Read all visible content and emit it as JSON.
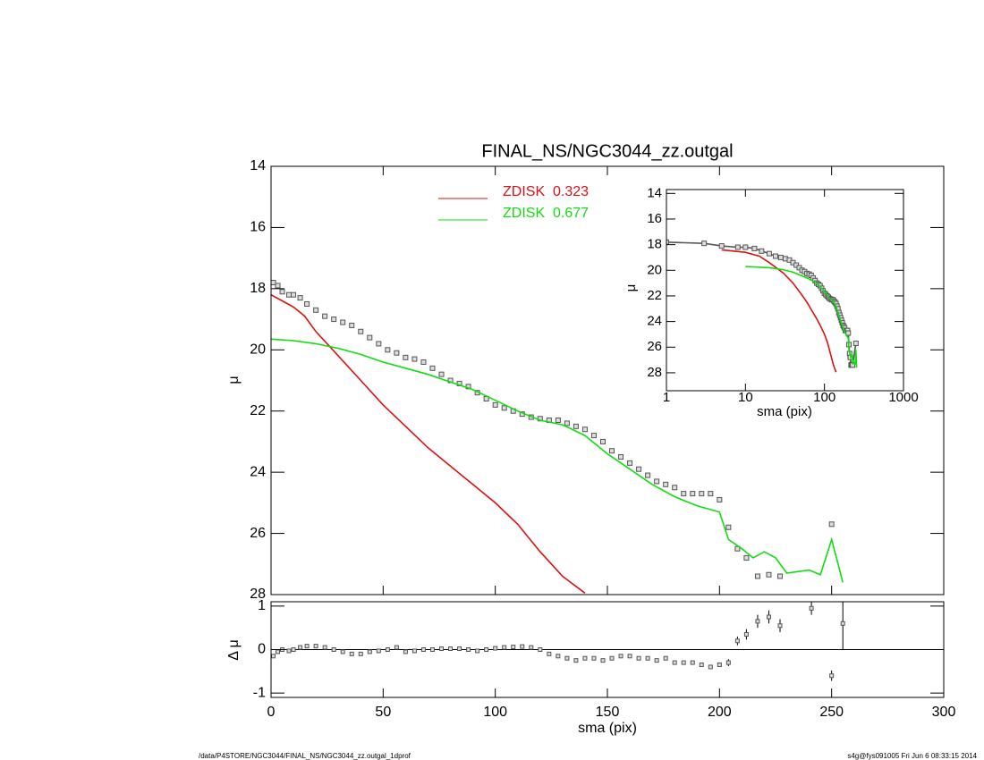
{
  "chart_data": [
    {
      "type": "scatter-line",
      "title": "FINAL_NS/NGC3044_zz.outgal",
      "ylabel": "μ",
      "xlabel": "sma (pix)",
      "xlim": [
        0,
        300
      ],
      "xticks": [
        0,
        50,
        100,
        150,
        200,
        250,
        300
      ],
      "ylim": [
        14,
        28
      ],
      "yticks": [
        14,
        16,
        18,
        20,
        22,
        24,
        26,
        28
      ],
      "y_inverted": true,
      "series": [
        {
          "kind": "points",
          "color": "#555555",
          "x": [
            1,
            3,
            5,
            8,
            10,
            13,
            16,
            20,
            24,
            28,
            32,
            36,
            40,
            44,
            48,
            52,
            56,
            60,
            64,
            68,
            72,
            76,
            80,
            84,
            88,
            92,
            96,
            100,
            104,
            108,
            112,
            116,
            120,
            124,
            128,
            132,
            136,
            140,
            144,
            148,
            152,
            156,
            160,
            164,
            168,
            172,
            176,
            180,
            184,
            188,
            192,
            196,
            200,
            204,
            208,
            212,
            217,
            222,
            227,
            250
          ],
          "values": [
            17.8,
            17.9,
            18.1,
            18.2,
            18.2,
            18.3,
            18.5,
            18.7,
            18.9,
            19.0,
            19.1,
            19.2,
            19.4,
            19.6,
            19.8,
            20.0,
            20.1,
            20.25,
            20.3,
            20.4,
            20.6,
            20.8,
            21.0,
            21.1,
            21.2,
            21.4,
            21.6,
            21.8,
            21.9,
            22.0,
            22.1,
            22.2,
            22.25,
            22.3,
            22.3,
            22.4,
            22.5,
            22.6,
            22.8,
            23.0,
            23.3,
            23.5,
            23.7,
            23.9,
            24.1,
            24.3,
            24.4,
            24.5,
            24.7,
            24.7,
            24.7,
            24.7,
            24.9,
            25.8,
            26.5,
            26.8,
            27.4,
            27.35,
            27.4,
            25.7
          ]
        },
        {
          "kind": "line",
          "name": "ZDISK  0.323",
          "color": "#dd1111",
          "x": [
            0,
            5,
            10,
            15,
            20,
            30,
            40,
            50,
            60,
            70,
            80,
            90,
            100,
            110,
            120,
            130,
            140
          ],
          "values": [
            18.2,
            18.4,
            18.6,
            18.9,
            19.4,
            20.2,
            21.0,
            21.8,
            22.5,
            23.2,
            23.8,
            24.4,
            25.0,
            25.7,
            26.6,
            27.4,
            27.95
          ]
        },
        {
          "kind": "line",
          "name": "ZDISK  0.677",
          "color": "#11dd11",
          "x": [
            0,
            10,
            20,
            30,
            40,
            50,
            60,
            70,
            80,
            90,
            100,
            110,
            120,
            130,
            140,
            150,
            160,
            170,
            180,
            190,
            200,
            204,
            210,
            215,
            220,
            225,
            230,
            240,
            245,
            250,
            255
          ],
          "values": [
            19.65,
            19.7,
            19.8,
            19.95,
            20.15,
            20.4,
            20.6,
            20.8,
            21.05,
            21.3,
            21.65,
            22.0,
            22.3,
            22.45,
            22.8,
            23.4,
            23.9,
            24.4,
            24.8,
            25.1,
            25.3,
            26.2,
            26.5,
            26.8,
            26.6,
            26.8,
            27.3,
            27.2,
            27.35,
            26.2,
            27.6
          ]
        }
      ]
    },
    {
      "type": "residual",
      "ylabel": "Δ μ",
      "ylim": [
        -1.1,
        1.1
      ],
      "yticks": [
        -1,
        0,
        1
      ],
      "series": [
        {
          "color": "#555555",
          "x": [
            1,
            3,
            5,
            8,
            10,
            13,
            16,
            20,
            24,
            28,
            32,
            36,
            40,
            44,
            48,
            52,
            56,
            60,
            64,
            68,
            72,
            76,
            80,
            84,
            88,
            92,
            96,
            100,
            104,
            108,
            112,
            116,
            120,
            124,
            128,
            132,
            136,
            140,
            144,
            148,
            152,
            156,
            160,
            164,
            168,
            172,
            176,
            180,
            184,
            188,
            192,
            196,
            200,
            204,
            208,
            212,
            217,
            222,
            227,
            241,
            250,
            255
          ],
          "values": [
            -0.15,
            -0.05,
            0,
            -0.03,
            0,
            0.05,
            0.08,
            0.08,
            0.05,
            0,
            -0.05,
            -0.1,
            -0.1,
            -0.05,
            -0.03,
            0,
            0.05,
            -0.05,
            -0.03,
            0,
            0,
            0.02,
            0.02,
            0.02,
            0,
            -0.03,
            0,
            0.03,
            0.05,
            0.06,
            0.07,
            0.05,
            0,
            -0.1,
            -0.15,
            -0.2,
            -0.25,
            -0.2,
            -0.2,
            -0.25,
            -0.2,
            -0.15,
            -0.15,
            -0.2,
            -0.2,
            -0.25,
            -0.2,
            -0.3,
            -0.3,
            -0.3,
            -0.35,
            -0.4,
            -0.35,
            -0.3,
            0.2,
            0.35,
            0.65,
            0.75,
            0.55,
            0.95,
            -0.6,
            0.6
          ],
          "errors": [
            0.02,
            0.02,
            0.02,
            0.02,
            0.02,
            0.02,
            0.02,
            0.02,
            0.02,
            0.02,
            0.02,
            0.02,
            0.02,
            0.02,
            0.02,
            0.02,
            0.02,
            0.02,
            0.02,
            0.02,
            0.02,
            0.02,
            0.02,
            0.02,
            0.02,
            0.02,
            0.02,
            0.02,
            0.02,
            0.02,
            0.02,
            0.02,
            0.02,
            0.02,
            0.02,
            0.02,
            0.02,
            0.02,
            0.02,
            0.02,
            0.02,
            0.02,
            0.02,
            0.02,
            0.02,
            0.02,
            0.02,
            0.02,
            0.02,
            0.02,
            0.02,
            0.02,
            0.05,
            0.08,
            0.1,
            0.12,
            0.15,
            0.15,
            0.15,
            0.15,
            0.12,
            0.6
          ]
        }
      ]
    },
    {
      "type": "inset",
      "xlabel": "sma (pix)",
      "ylabel": "μ",
      "log_x": true,
      "xlim": [
        1,
        1000
      ],
      "xticks": [
        1,
        10,
        100,
        1000
      ],
      "ylim": [
        13.7,
        29.4
      ],
      "yticks": [
        14,
        16,
        18,
        20,
        22,
        24,
        26,
        28
      ]
    }
  ],
  "footer": {
    "left": "/data/P4STORE/NGC3044/FINAL_NS/NGC3044_zz.outgal_1dprof",
    "right": "s4g@fys091005  Fri Jun  6 08:33:15 2014"
  }
}
